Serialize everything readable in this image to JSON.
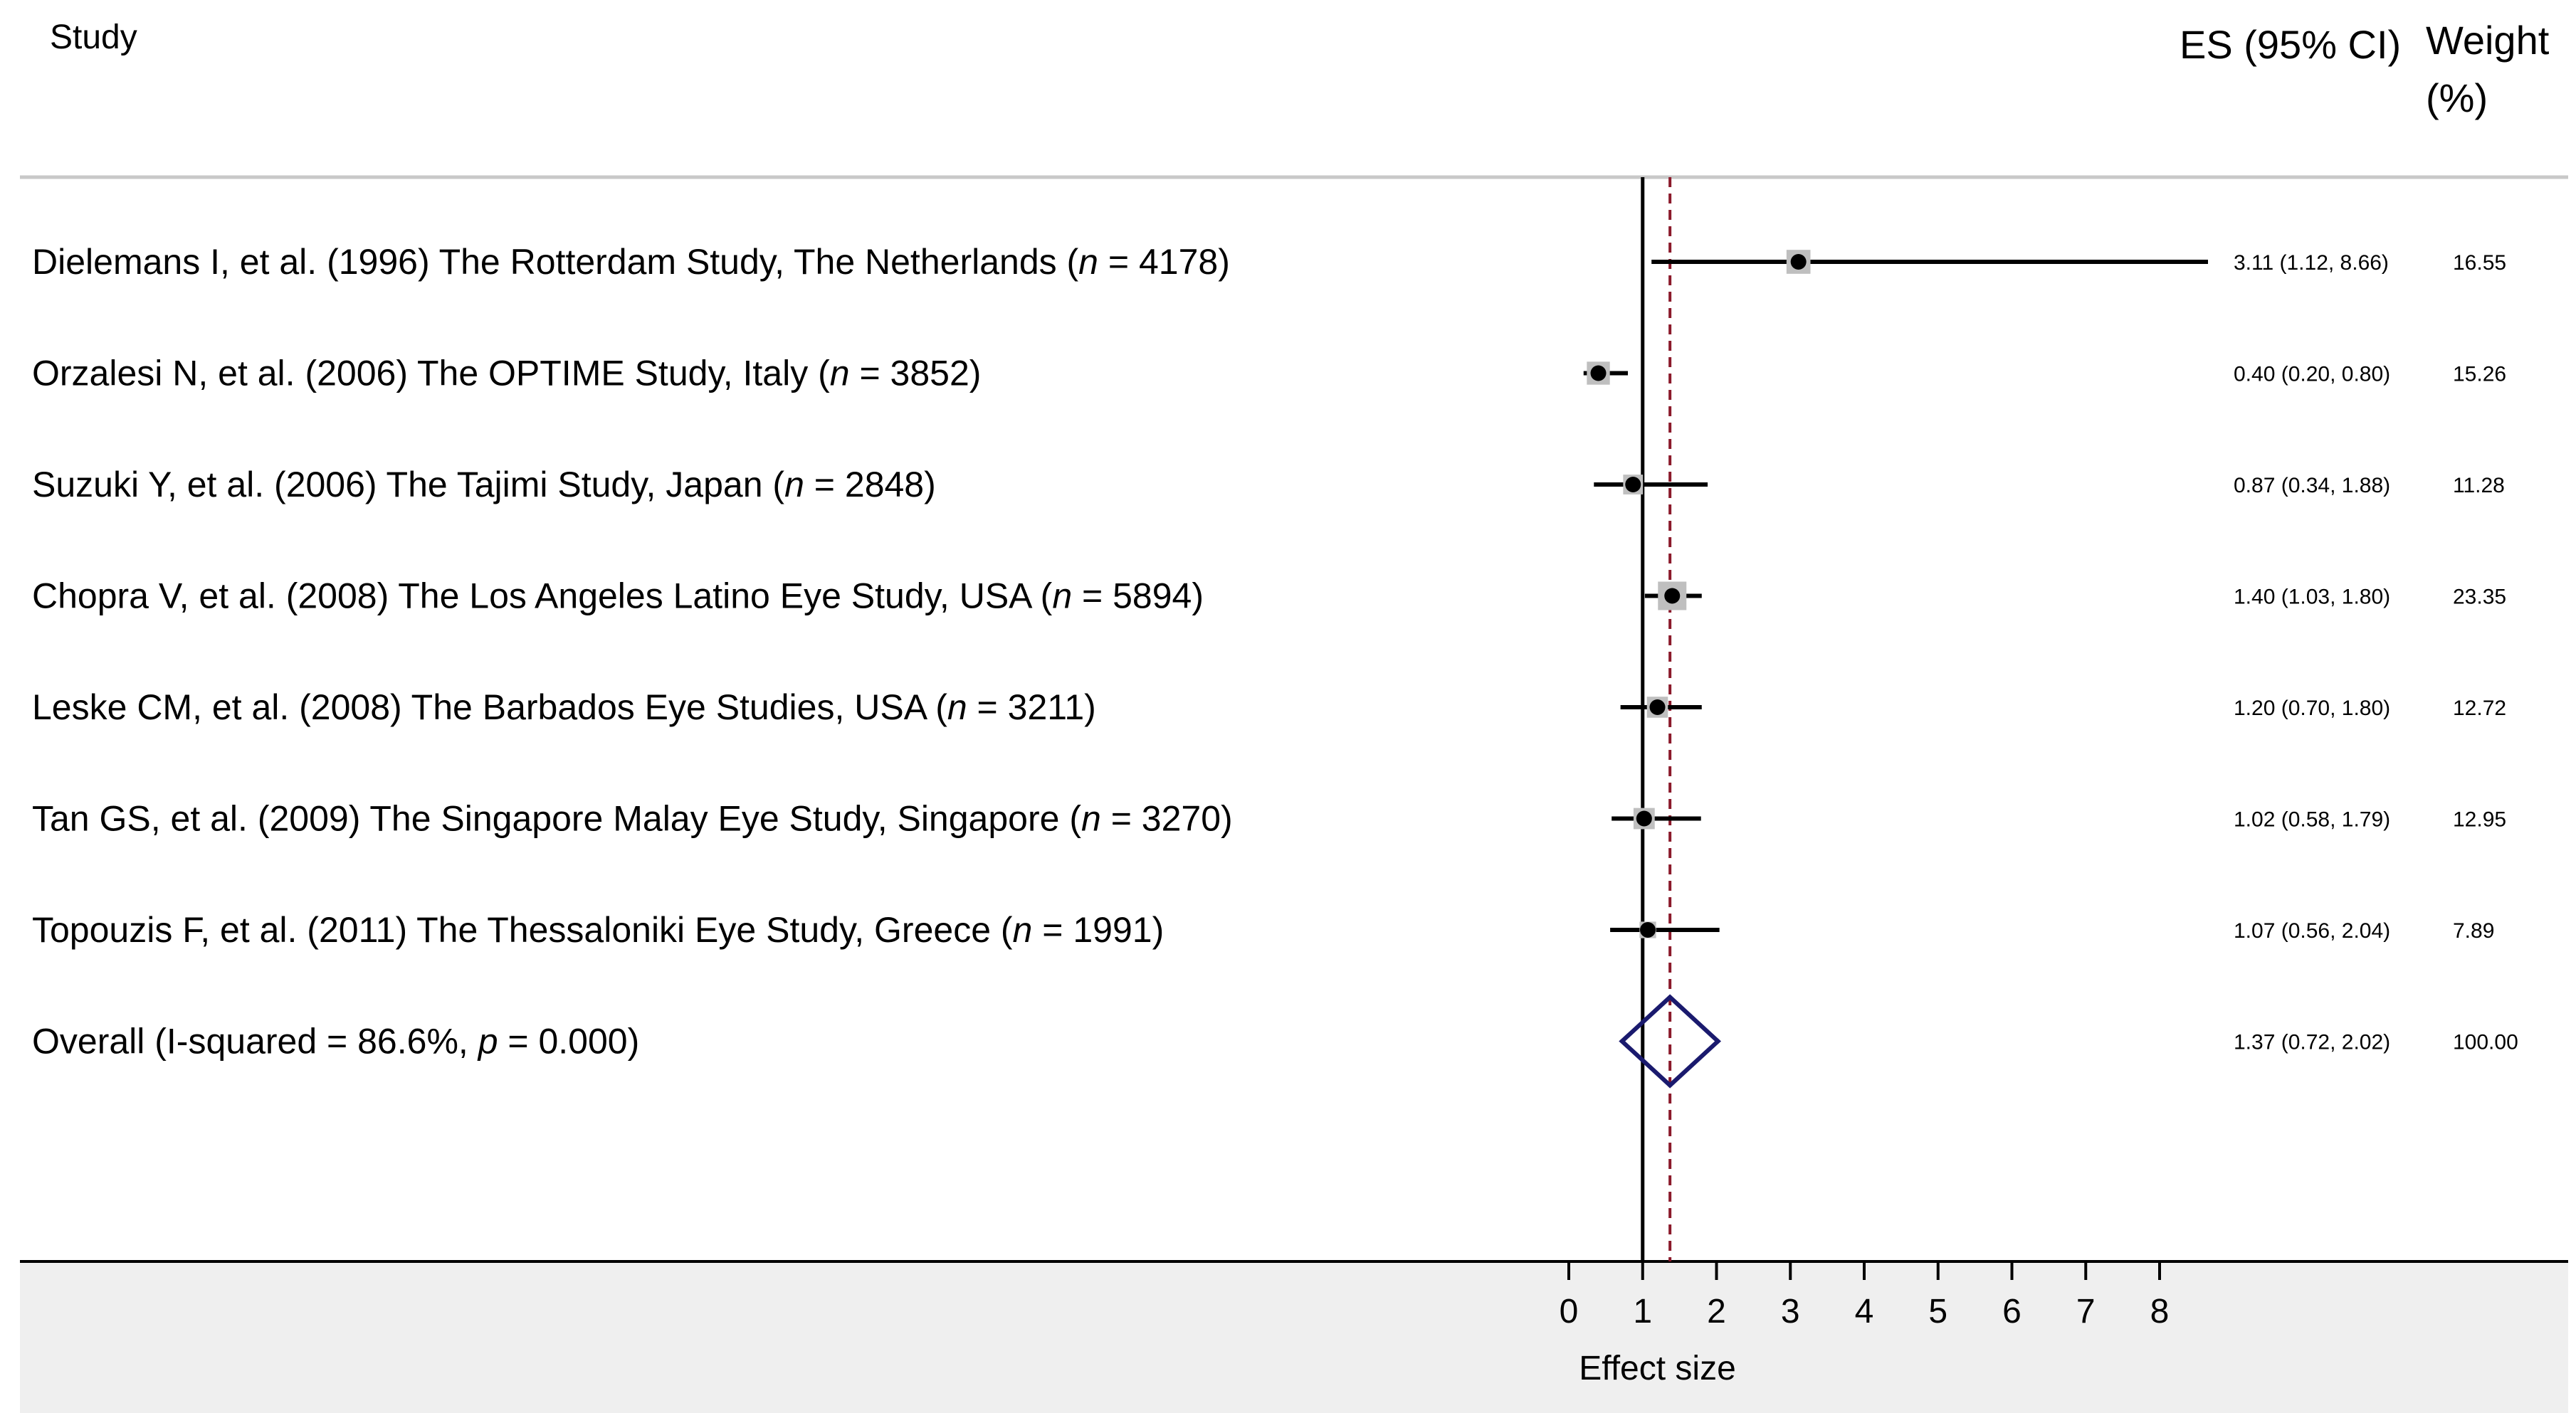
{
  "headers": {
    "study": "Study",
    "es": "ES (95% CI)",
    "weight_line1": "Weight",
    "weight_line2": "(%)"
  },
  "chart_data": {
    "type": "forest",
    "xlabel": "Effect size",
    "xlim": [
      0,
      8
    ],
    "x_ticks": [
      "0",
      "1",
      "2",
      "3",
      "4",
      "5",
      "6",
      "7",
      "8"
    ],
    "null_line": 1,
    "overall_line": 1.37,
    "studies": [
      {
        "name": "Dielemans I, et al. (1996) The Rotterdam Study, The Netherlands",
        "n_prefix": " (",
        "n_label": "n",
        "n_suffix": " = 4178)",
        "es": 3.11,
        "lo": 1.12,
        "hi": 8.66,
        "es_text": "3.11 (1.12, 8.66)",
        "weight": 16.55,
        "weight_text": "16.55"
      },
      {
        "name": "Orzalesi N, et al. (2006) The OPTIME Study, Italy",
        "n_prefix": " (",
        "n_label": "n",
        "n_suffix": " = 3852)",
        "es": 0.4,
        "lo": 0.2,
        "hi": 0.8,
        "es_text": "0.40 (0.20, 0.80)",
        "weight": 15.26,
        "weight_text": "15.26"
      },
      {
        "name": "Suzuki Y, et al. (2006) The Tajimi Study, Japan",
        "n_prefix": " (",
        "n_label": "n",
        "n_suffix": " = 2848)",
        "es": 0.87,
        "lo": 0.34,
        "hi": 1.88,
        "es_text": "0.87 (0.34, 1.88)",
        "weight": 11.28,
        "weight_text": "11.28"
      },
      {
        "name": "Chopra V, et al. (2008) The Los Angeles Latino Eye Study, USA",
        "n_prefix": " (",
        "n_label": "n",
        "n_suffix": " = 5894)",
        "es": 1.4,
        "lo": 1.03,
        "hi": 1.8,
        "es_text": "1.40 (1.03, 1.80)",
        "weight": 23.35,
        "weight_text": "23.35"
      },
      {
        "name": "Leske CM, et al. (2008) The Barbados Eye Studies, USA",
        "n_prefix": " (",
        "n_label": "n",
        "n_suffix": " = 3211)",
        "es": 1.2,
        "lo": 0.7,
        "hi": 1.8,
        "es_text": "1.20 (0.70, 1.80)",
        "weight": 12.72,
        "weight_text": "12.72"
      },
      {
        "name": "Tan GS, et al. (2009) The Singapore Malay Eye Study, Singapore",
        "n_prefix": " (",
        "n_label": "n",
        "n_suffix": " = 3270)",
        "es": 1.02,
        "lo": 0.58,
        "hi": 1.79,
        "es_text": "1.02 (0.58, 1.79)",
        "weight": 12.95,
        "weight_text": "12.95"
      },
      {
        "name": "Topouzis F, et al. (2011) The Thessaloniki Eye Study, Greece",
        "n_prefix": " (",
        "n_label": "n",
        "n_suffix": " = 1991)",
        "es": 1.07,
        "lo": 0.56,
        "hi": 2.04,
        "es_text": "1.07 (0.56, 2.04)",
        "weight": 7.89,
        "weight_text": "7.89"
      }
    ],
    "overall": {
      "label_prefix": "Overall  (I-squared = 86.6%, ",
      "p_label": "p",
      "label_suffix": " = 0.000)",
      "es": 1.37,
      "lo": 0.72,
      "hi": 2.02,
      "es_text": "1.37 (0.72, 2.02)",
      "weight_text": "100.00"
    },
    "colors": {
      "ci_line": "#000000",
      "weight_box": "#bfbfbf",
      "point": "#000000",
      "null_line": "#000000",
      "overall_line": "#8b1a2b",
      "diamond": "#1a1a6e",
      "axis_band": "#efefef",
      "separator": "#c8c8c8"
    }
  }
}
